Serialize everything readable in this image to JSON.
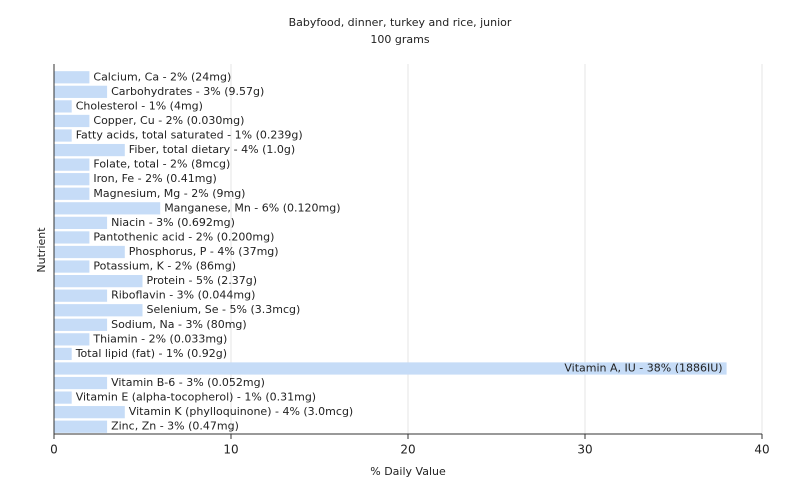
{
  "chart_data": {
    "type": "bar",
    "orientation": "horizontal",
    "title": "Babyfood, dinner, turkey and rice, junior",
    "subtitle": "100 grams",
    "x_label": "% Daily Value",
    "y_label": "Nutrient",
    "categories": [
      "Calcium, Ca - 2% (24mg)",
      "Carbohydrates - 3% (9.57g)",
      "Cholesterol - 1% (4mg)",
      "Copper, Cu - 2% (0.030mg)",
      "Fatty acids, total saturated - 1% (0.239g)",
      "Fiber, total dietary - 4% (1.0g)",
      "Folate, total - 2% (8mcg)",
      "Iron, Fe - 2% (0.41mg)",
      "Magnesium, Mg - 2% (9mg)",
      "Manganese, Mn - 6% (0.120mg)",
      "Niacin - 3% (0.692mg)",
      "Pantothenic acid - 2% (0.200mg)",
      "Phosphorus, P - 4% (37mg)",
      "Potassium, K - 2% (86mg)",
      "Protein - 5% (2.37g)",
      "Riboflavin - 3% (0.044mg)",
      "Selenium, Se - 5% (3.3mcg)",
      "Sodium, Na - 3% (80mg)",
      "Thiamin - 2% (0.033mg)",
      "Total lipid (fat) - 1% (0.92g)",
      "Vitamin A, IU - 38% (1886IU)",
      "Vitamin B-6 - 3% (0.052mg)",
      "Vitamin E (alpha-tocopherol) - 1% (0.31mg)",
      "Vitamin K (phylloquinone) - 4% (3.0mcg)",
      "Zinc, Zn - 3% (0.47mg)"
    ],
    "values": [
      2,
      3,
      1,
      2,
      1,
      4,
      2,
      2,
      2,
      6,
      3,
      2,
      4,
      2,
      5,
      3,
      5,
      3,
      2,
      1,
      38,
      3,
      1,
      4,
      3
    ],
    "color": "#c6dcf7",
    "xlim": [
      0,
      40
    ],
    "xticks": [
      0,
      10,
      20,
      30,
      40
    ],
    "grid": true
  }
}
